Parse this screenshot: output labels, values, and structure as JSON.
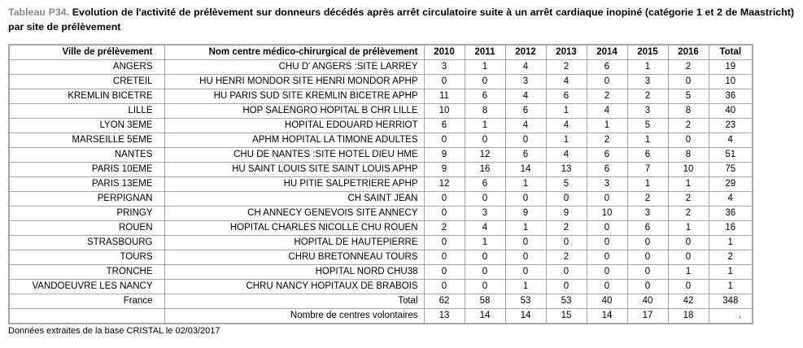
{
  "title": {
    "label": "Tableau P34.",
    "text": "Evolution de l'activité de prélèvement sur donneurs décédés après arrêt circulatoire suite à un arrêt cardiaque inopiné (catégorie 1 et 2 de Maastricht) par site de prélèvement"
  },
  "table": {
    "columns": [
      "Ville de prélèvement",
      "Nom centre médico-chirurgical de prélèvement",
      "2010",
      "2011",
      "2012",
      "2013",
      "2014",
      "2015",
      "2016",
      "Total"
    ],
    "rows": [
      {
        "ville": "ANGERS",
        "centre": "CHU D' ANGERS :SITE LARREY",
        "values": [
          "3",
          "1",
          "4",
          "2",
          "6",
          "1",
          "2",
          "19"
        ]
      },
      {
        "ville": "CRETEIL",
        "centre": "HU HENRI MONDOR SITE HENRI MONDOR APHP",
        "values": [
          "0",
          "0",
          "3",
          "4",
          "0",
          "3",
          "0",
          "10"
        ]
      },
      {
        "ville": "KREMLIN BICETRE",
        "centre": "HU PARIS SUD SITE KREMLIN BICETRE APHP",
        "values": [
          "11",
          "6",
          "4",
          "6",
          "2",
          "2",
          "5",
          "36"
        ]
      },
      {
        "ville": "LILLE",
        "centre": "HOP SALENGRO HOPITAL B CHR LILLE",
        "values": [
          "10",
          "8",
          "6",
          "1",
          "4",
          "3",
          "8",
          "40"
        ]
      },
      {
        "ville": "LYON 3EME",
        "centre": "HOPITAL EDOUARD HERRIOT",
        "values": [
          "6",
          "1",
          "4",
          "4",
          "1",
          "5",
          "2",
          "23"
        ]
      },
      {
        "ville": "MARSEILLE 5EME",
        "centre": "APHM HOPITAL LA TIMONE ADULTES",
        "values": [
          "0",
          "0",
          "0",
          "1",
          "2",
          "1",
          "0",
          "4"
        ]
      },
      {
        "ville": "NANTES",
        "centre": "CHU DE NANTES :SITE HOTEL DIEU HME",
        "values": [
          "9",
          "12",
          "6",
          "4",
          "6",
          "6",
          "8",
          "51"
        ]
      },
      {
        "ville": "PARIS 10EME",
        "centre": "HU SAINT LOUIS SITE SAINT LOUIS APHP",
        "values": [
          "9",
          "16",
          "14",
          "13",
          "6",
          "7",
          "10",
          "75"
        ]
      },
      {
        "ville": "PARIS 13EME",
        "centre": "HU PITIE SALPETRIERE APHP",
        "values": [
          "12",
          "6",
          "1",
          "5",
          "3",
          "1",
          "1",
          "29"
        ]
      },
      {
        "ville": "PERPIGNAN",
        "centre": "CH SAINT JEAN",
        "values": [
          "0",
          "0",
          "0",
          "0",
          "0",
          "2",
          "2",
          "4"
        ]
      },
      {
        "ville": "PRINGY",
        "centre": "CH ANNECY GENEVOIS SITE ANNECY",
        "values": [
          "0",
          "3",
          "9",
          "9",
          "10",
          "3",
          "2",
          "36"
        ]
      },
      {
        "ville": "ROUEN",
        "centre": "HOPITAL CHARLES NICOLLE CHU ROUEN",
        "values": [
          "2",
          "4",
          "1",
          "2",
          "0",
          "6",
          "1",
          "16"
        ]
      },
      {
        "ville": "STRASBOURG",
        "centre": "HOPITAL DE HAUTEPIERRE",
        "values": [
          "0",
          "1",
          "0",
          "0",
          "0",
          "0",
          "0",
          "1"
        ]
      },
      {
        "ville": "TOURS",
        "centre": "CHRU BRETONNEAU TOURS",
        "values": [
          "0",
          "0",
          "0",
          "2",
          "0",
          "0",
          "0",
          "2"
        ]
      },
      {
        "ville": "TRONCHE",
        "centre": "HOPITAL NORD CHU38",
        "values": [
          "0",
          "0",
          "0",
          "0",
          "0",
          "0",
          "1",
          "1"
        ]
      },
      {
        "ville": "VANDOEUVRE LES NANCY",
        "centre": "CHRU NANCY HOPITAUX DE BRABOIS",
        "values": [
          "0",
          "0",
          "1",
          "0",
          "0",
          "0",
          "0",
          "1"
        ]
      }
    ],
    "total_row": {
      "ville": "France",
      "centre": "Total",
      "values": [
        "62",
        "58",
        "53",
        "53",
        "40",
        "40",
        "42",
        "348"
      ]
    },
    "volunteer_row": {
      "ville": "",
      "centre": "Nombre de centres volontaires",
      "values": [
        "13",
        "14",
        "14",
        "15",
        "14",
        "17",
        "18",
        "."
      ]
    }
  },
  "footer": {
    "source_note": "Données extraites de la base CRISTAL le 02/03/2017"
  },
  "colors": {
    "title_label": "#878787",
    "border": "#a6a6a6",
    "text": "#000000",
    "background": "#ffffff"
  }
}
